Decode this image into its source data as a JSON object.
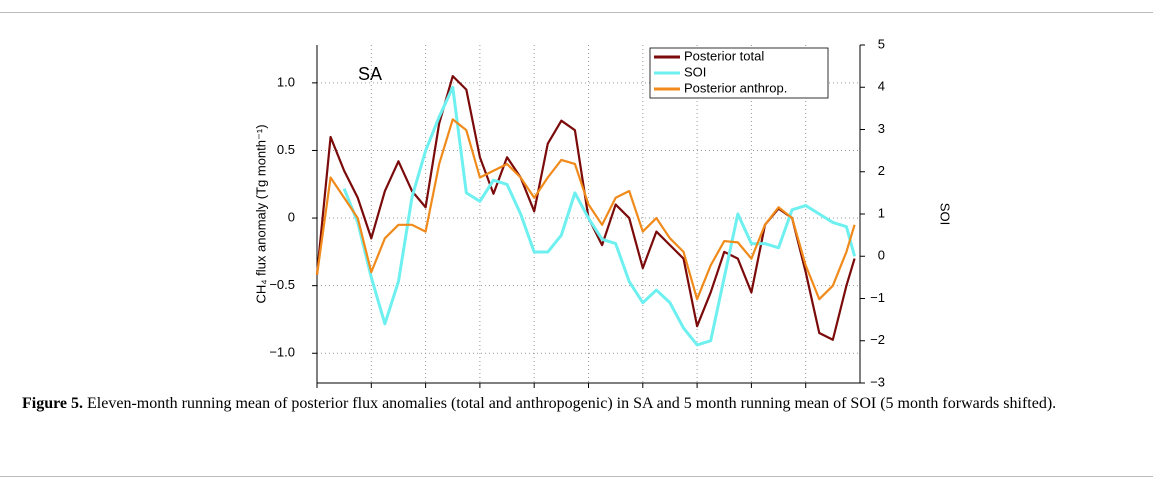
{
  "chart_data": {
    "type": "line",
    "annotation": "SA",
    "y_label": "CH₄ flux anomaly (Tg month⁻¹)",
    "y2_label": "SOI",
    "x": [
      2009.0,
      2009.25,
      2009.5,
      2009.75,
      2010.0,
      2010.25,
      2010.5,
      2010.75,
      2011.0,
      2011.25,
      2011.5,
      2011.75,
      2012.0,
      2012.25,
      2012.5,
      2012.75,
      2013.0,
      2013.25,
      2013.5,
      2013.75,
      2014.0,
      2014.25,
      2014.5,
      2014.75,
      2015.0,
      2015.25,
      2015.5,
      2015.75,
      2016.0,
      2016.25,
      2016.5,
      2016.75,
      2017.0,
      2017.25,
      2017.5,
      2017.75,
      2018.0,
      2018.25,
      2018.5,
      2018.75,
      2018.9
    ],
    "series": [
      {
        "name": "Posterior total",
        "color": "#7b0a0a",
        "axis": "y",
        "values": [
          -0.42,
          0.6,
          0.35,
          0.15,
          -0.15,
          0.2,
          0.42,
          0.2,
          0.08,
          0.7,
          1.05,
          0.95,
          0.45,
          0.18,
          0.45,
          0.3,
          0.05,
          0.55,
          0.72,
          0.65,
          0.0,
          -0.2,
          0.1,
          0.0,
          -0.37,
          -0.1,
          -0.2,
          -0.3,
          -0.8,
          -0.55,
          -0.25,
          -0.3,
          -0.55,
          -0.05,
          0.07,
          0.0,
          -0.4,
          -0.85,
          -0.9,
          -0.5,
          -0.3
        ]
      },
      {
        "name": "SOI",
        "color": "#6ef0f0",
        "axis": "y2",
        "values": [
          null,
          null,
          1.6,
          0.8,
          -0.5,
          -1.6,
          -0.6,
          1.4,
          2.5,
          3.3,
          4.0,
          1.5,
          1.3,
          1.8,
          1.7,
          1.0,
          0.1,
          0.1,
          0.5,
          1.5,
          0.9,
          0.4,
          0.3,
          -0.6,
          -1.1,
          -0.8,
          -1.1,
          -1.7,
          -2.1,
          -2.0,
          -0.5,
          1.0,
          0.3,
          0.3,
          0.2,
          1.1,
          1.2,
          1.0,
          0.8,
          0.7,
          0.0
        ]
      },
      {
        "name": "Posterior anthrop.",
        "color": "#f08a1a",
        "axis": "y",
        "values": [
          -0.42,
          0.3,
          0.15,
          0.0,
          -0.4,
          -0.15,
          -0.05,
          -0.05,
          -0.1,
          0.4,
          0.73,
          0.65,
          0.3,
          0.35,
          0.4,
          0.3,
          0.15,
          0.3,
          0.43,
          0.4,
          0.1,
          -0.05,
          0.15,
          0.2,
          -0.1,
          0.0,
          -0.15,
          -0.25,
          -0.6,
          -0.35,
          -0.17,
          -0.18,
          -0.3,
          -0.05,
          0.08,
          0.0,
          -0.35,
          -0.6,
          -0.5,
          -0.25,
          -0.05
        ]
      }
    ],
    "xlim": [
      2009,
      2019
    ],
    "xticks": [
      2009,
      2010,
      2011,
      2012,
      2013,
      2014,
      2015,
      2016,
      2017,
      2018
    ],
    "ylim": [
      -1.22,
      1.28
    ],
    "yticks": [
      {
        "value": -1,
        "label": "−1.0"
      },
      {
        "value": -0.5,
        "label": "−0.5"
      },
      0,
      0.5,
      {
        "value": 1,
        "label": "1.0"
      }
    ],
    "y2lim": [
      -3,
      5
    ],
    "y2ticks": [
      {
        "value": -3,
        "label": "−3"
      },
      {
        "value": -2,
        "label": "−2"
      },
      {
        "value": -1,
        "label": "−1"
      },
      0,
      1,
      2,
      3,
      4,
      5
    ],
    "grid": true,
    "legend": "upper right"
  },
  "caption": {
    "label": "Figure 5.",
    "text": "Eleven-month running mean of posterior flux anomalies (total and anthropogenic) in SA and 5 month running mean of SOI (5 month forwards shifted)."
  }
}
